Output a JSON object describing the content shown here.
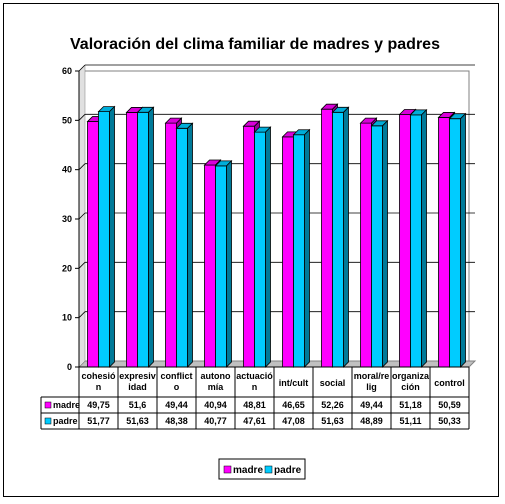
{
  "chart_data": {
    "type": "bar",
    "title": "Valoración del clima familiar de madres y padres",
    "categories": [
      [
        "cohesió",
        "n"
      ],
      [
        "expresiv",
        "idad"
      ],
      [
        "conflict",
        "o"
      ],
      [
        "autono",
        "mía"
      ],
      [
        "actuació",
        "n"
      ],
      [
        "int/cult"
      ],
      [
        "social"
      ],
      [
        "moral/re",
        "lig"
      ],
      [
        "organiza",
        "ción"
      ],
      [
        "control"
      ]
    ],
    "series": [
      {
        "name": "madre",
        "color": "#ff00ff",
        "values": [
          49.75,
          51.6,
          49.44,
          40.94,
          48.81,
          46.65,
          52.26,
          49.44,
          51.18,
          50.59
        ],
        "labels": [
          "49,75",
          "51,6",
          "49,44",
          "40,94",
          "48,81",
          "46,65",
          "52,26",
          "49,44",
          "51,18",
          "50,59"
        ]
      },
      {
        "name": "padre",
        "color": "#00ccff",
        "values": [
          51.77,
          51.63,
          48.38,
          40.77,
          47.61,
          47.08,
          51.63,
          48.89,
          51.11,
          50.33
        ],
        "labels": [
          "51,77",
          "51,63",
          "48,38",
          "40,77",
          "47,61",
          "47,08",
          "51,63",
          "48,89",
          "51,11",
          "50,33"
        ]
      }
    ],
    "yticks": [
      "0",
      "10",
      "20",
      "30",
      "40",
      "50",
      "60"
    ],
    "ylim": [
      0,
      60
    ],
    "grid": true,
    "legend_position": "bottom",
    "data_table": true
  }
}
